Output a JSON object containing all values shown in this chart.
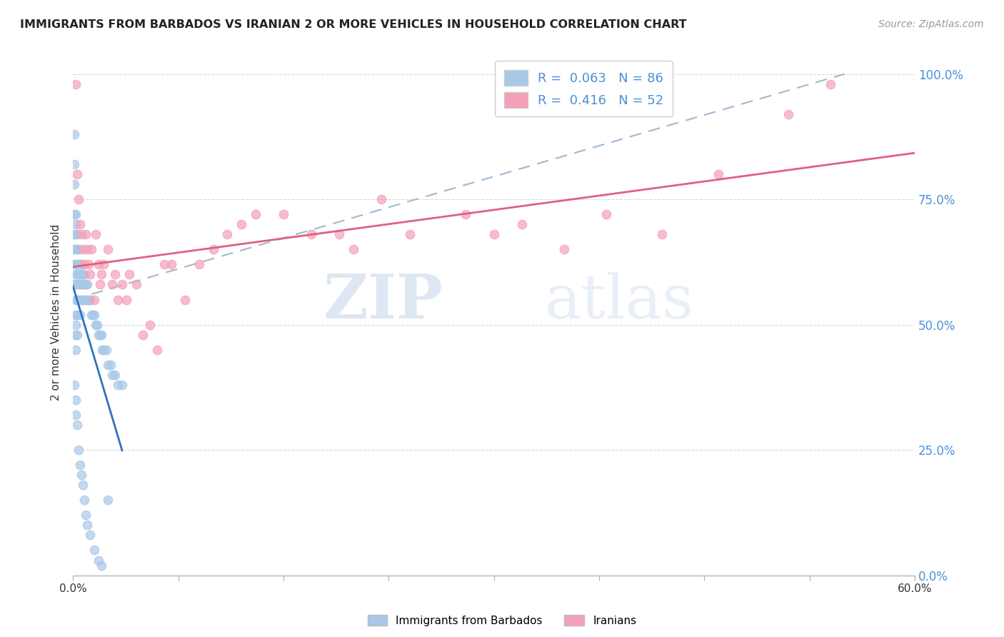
{
  "title": "IMMIGRANTS FROM BARBADOS VS IRANIAN 2 OR MORE VEHICLES IN HOUSEHOLD CORRELATION CHART",
  "source": "Source: ZipAtlas.com",
  "ylabel": "2 or more Vehicles in Household",
  "ytick_labels": [
    "0.0%",
    "25.0%",
    "50.0%",
    "75.0%",
    "100.0%"
  ],
  "ytick_values": [
    0.0,
    0.25,
    0.5,
    0.75,
    1.0
  ],
  "xlim": [
    0.0,
    0.6
  ],
  "ylim": [
    0.0,
    1.05
  ],
  "barbados_R": 0.063,
  "barbados_N": 86,
  "iranian_R": 0.416,
  "iranian_N": 52,
  "barbados_color": "#a8c8e8",
  "iranian_color": "#f4a0b8",
  "barbados_line_color": "#3070c0",
  "iranian_line_color": "#e06080",
  "dashed_line_color": "#a0b8d0",
  "legend_label_barbados": "Immigrants from Barbados",
  "legend_label_iranian": "Iranians",
  "watermark_zip": "ZIP",
  "watermark_atlas": "atlas",
  "background_color": "#ffffff",
  "grid_color": "#d8d8d8",
  "barbados_x": [
    0.001,
    0.001,
    0.001,
    0.001,
    0.001,
    0.001,
    0.001,
    0.001,
    0.002,
    0.002,
    0.002,
    0.002,
    0.002,
    0.002,
    0.002,
    0.002,
    0.002,
    0.002,
    0.002,
    0.002,
    0.003,
    0.003,
    0.003,
    0.003,
    0.003,
    0.003,
    0.003,
    0.003,
    0.004,
    0.004,
    0.004,
    0.004,
    0.004,
    0.005,
    0.005,
    0.005,
    0.005,
    0.005,
    0.006,
    0.006,
    0.006,
    0.006,
    0.007,
    0.007,
    0.007,
    0.008,
    0.008,
    0.009,
    0.009,
    0.01,
    0.01,
    0.011,
    0.012,
    0.013,
    0.014,
    0.015,
    0.016,
    0.017,
    0.018,
    0.019,
    0.02,
    0.021,
    0.022,
    0.024,
    0.025,
    0.027,
    0.028,
    0.03,
    0.032,
    0.035,
    0.001,
    0.002,
    0.002,
    0.003,
    0.004,
    0.005,
    0.006,
    0.007,
    0.008,
    0.009,
    0.01,
    0.012,
    0.015,
    0.018,
    0.02,
    0.025
  ],
  "barbados_y": [
    0.88,
    0.82,
    0.78,
    0.72,
    0.68,
    0.65,
    0.62,
    0.58,
    0.72,
    0.7,
    0.68,
    0.65,
    0.62,
    0.6,
    0.58,
    0.55,
    0.52,
    0.5,
    0.48,
    0.45,
    0.68,
    0.65,
    0.62,
    0.6,
    0.58,
    0.55,
    0.52,
    0.48,
    0.65,
    0.62,
    0.6,
    0.58,
    0.55,
    0.62,
    0.6,
    0.58,
    0.55,
    0.52,
    0.62,
    0.6,
    0.58,
    0.55,
    0.6,
    0.58,
    0.55,
    0.6,
    0.58,
    0.58,
    0.55,
    0.58,
    0.55,
    0.55,
    0.55,
    0.52,
    0.52,
    0.52,
    0.5,
    0.5,
    0.48,
    0.48,
    0.48,
    0.45,
    0.45,
    0.45,
    0.42,
    0.42,
    0.4,
    0.4,
    0.38,
    0.38,
    0.38,
    0.35,
    0.32,
    0.3,
    0.25,
    0.22,
    0.2,
    0.18,
    0.15,
    0.12,
    0.1,
    0.08,
    0.05,
    0.03,
    0.02,
    0.15
  ],
  "iranian_x": [
    0.002,
    0.003,
    0.004,
    0.005,
    0.006,
    0.007,
    0.008,
    0.009,
    0.01,
    0.011,
    0.012,
    0.013,
    0.015,
    0.016,
    0.018,
    0.019,
    0.02,
    0.022,
    0.025,
    0.028,
    0.03,
    0.032,
    0.035,
    0.038,
    0.04,
    0.045,
    0.05,
    0.055,
    0.06,
    0.065,
    0.07,
    0.08,
    0.09,
    0.1,
    0.11,
    0.12,
    0.13,
    0.15,
    0.17,
    0.19,
    0.2,
    0.22,
    0.24,
    0.28,
    0.3,
    0.32,
    0.35,
    0.38,
    0.42,
    0.46,
    0.51,
    0.54
  ],
  "iranian_y": [
    0.98,
    0.8,
    0.75,
    0.7,
    0.68,
    0.65,
    0.62,
    0.68,
    0.65,
    0.62,
    0.6,
    0.65,
    0.55,
    0.68,
    0.62,
    0.58,
    0.6,
    0.62,
    0.65,
    0.58,
    0.6,
    0.55,
    0.58,
    0.55,
    0.6,
    0.58,
    0.48,
    0.5,
    0.45,
    0.62,
    0.62,
    0.55,
    0.62,
    0.65,
    0.68,
    0.7,
    0.72,
    0.72,
    0.68,
    0.68,
    0.65,
    0.75,
    0.68,
    0.72,
    0.68,
    0.7,
    0.65,
    0.72,
    0.68,
    0.8,
    0.92,
    0.98
  ]
}
